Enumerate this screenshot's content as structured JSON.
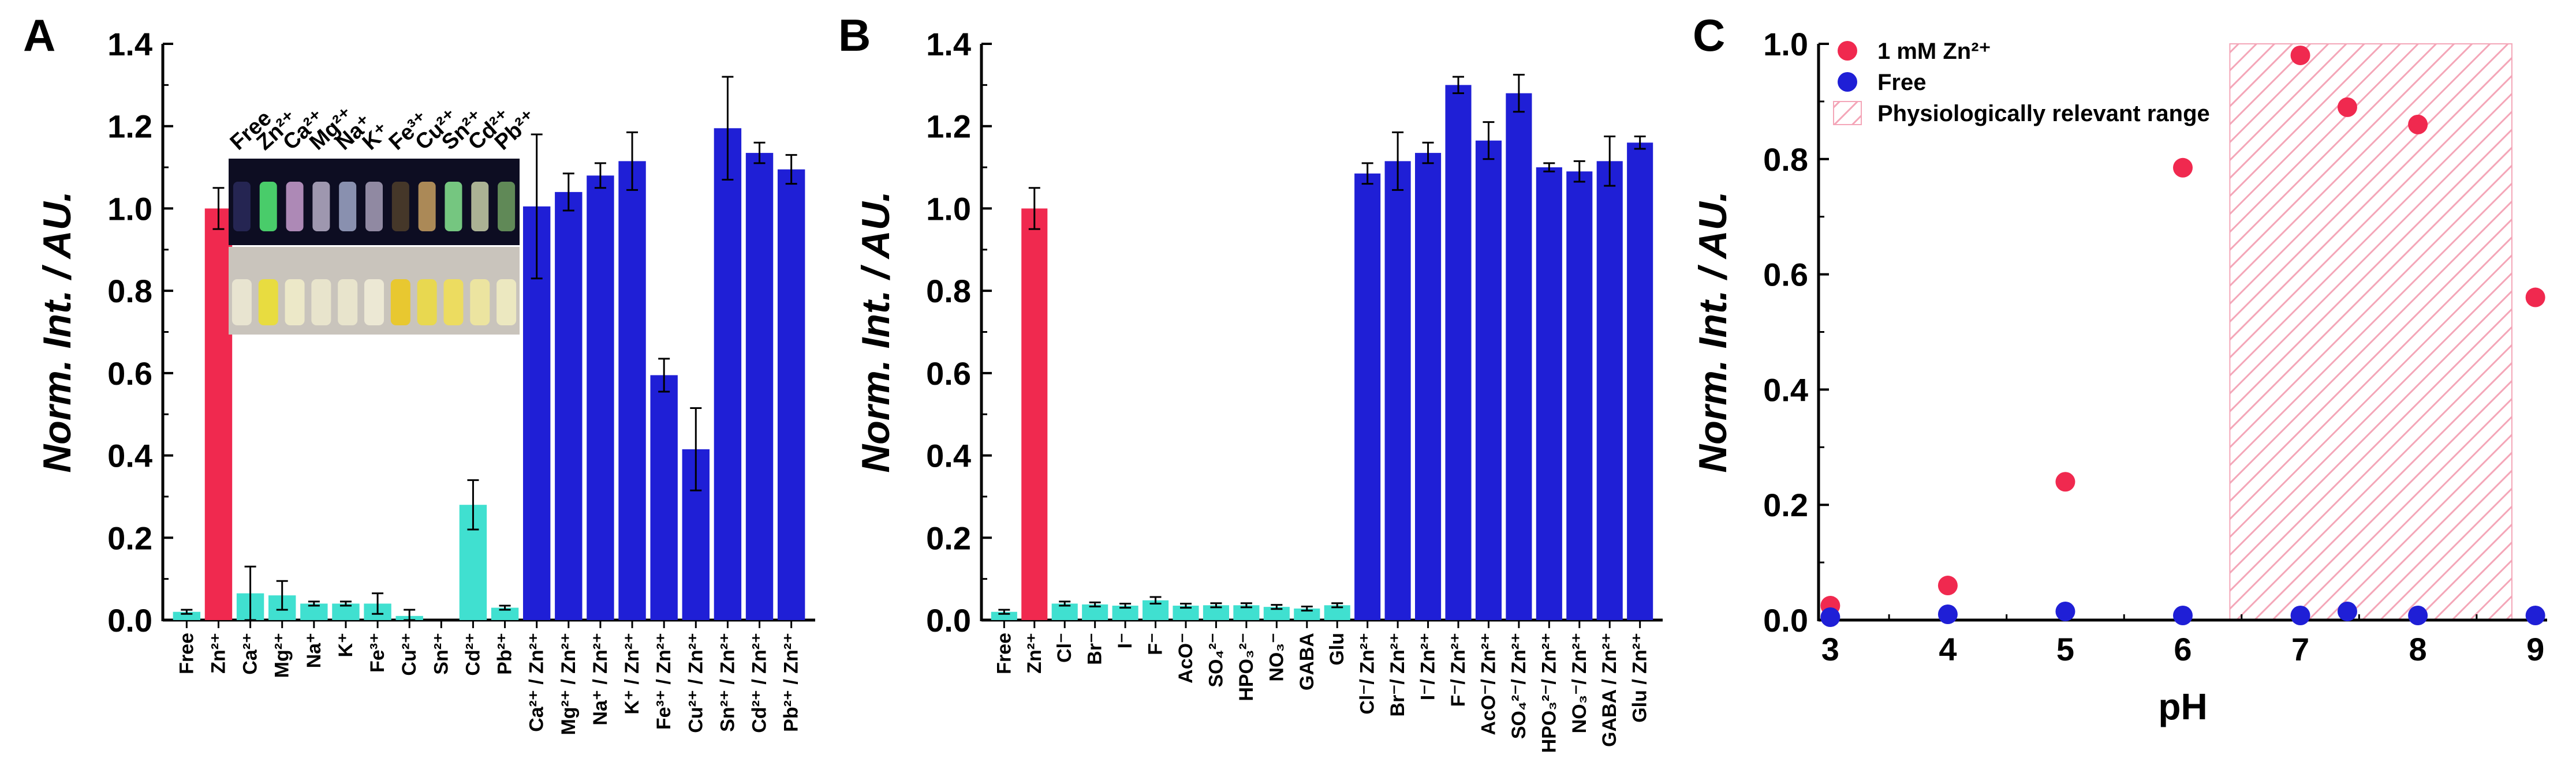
{
  "colors": {
    "zn": "#f0294f",
    "pale": "#40e0d0",
    "dark": "#1f1fd6",
    "hatch": "#f4a6b8"
  },
  "chart_data": [
    {
      "panel": "A",
      "type": "bar",
      "ylabel": "Norm. Int. / AU.",
      "ylim": [
        0,
        1.4
      ],
      "yticks": [
        "0.0",
        "0.2",
        "0.4",
        "0.6",
        "0.8",
        "1.0",
        "1.2",
        "1.4"
      ],
      "categories": [
        "Free",
        "Zn²⁺",
        "Ca²⁺",
        "Mg²⁺",
        "Na⁺",
        "K⁺",
        "Fe³⁺",
        "Cu²⁺",
        "Sn²⁺",
        "Cd²⁺",
        "Pb²⁺",
        "Ca²⁺ / Zn²⁺",
        "Mg²⁺ / Zn²⁺",
        "Na⁺ / Zn²⁺",
        "K⁺ / Zn²⁺",
        "Fe³⁺ / Zn²⁺",
        "Cu²⁺ / Zn²⁺",
        "Sn²⁺ / Zn²⁺",
        "Cd²⁺ / Zn²⁺",
        "Pb²⁺ / Zn²⁺"
      ],
      "values": [
        0.02,
        1.0,
        0.065,
        0.06,
        0.04,
        0.04,
        0.04,
        0.01,
        0.0,
        0.28,
        0.03,
        1.005,
        1.04,
        1.08,
        1.115,
        0.595,
        0.415,
        1.195,
        1.135,
        1.095
      ],
      "errors": [
        0.005,
        0.05,
        0.065,
        0.035,
        0.005,
        0.005,
        0.025,
        0.015,
        0.0,
        0.06,
        0.005,
        0.175,
        0.045,
        0.03,
        0.07,
        0.04,
        0.1,
        0.125,
        0.025,
        0.035
      ],
      "colors": [
        "pale",
        "zn",
        "pale",
        "pale",
        "pale",
        "pale",
        "pale",
        "pale",
        "pale",
        "pale",
        "pale",
        "dark",
        "dark",
        "dark",
        "dark",
        "dark",
        "dark",
        "dark",
        "dark",
        "dark"
      ],
      "inset_labels": [
        "Free",
        "Zn²⁺",
        "Ca²⁺",
        "Mg²⁺",
        "Na⁺",
        "K⁺",
        "Fe³⁺",
        "Cu²⁺",
        "Sn²⁺",
        "Cd²⁺",
        "Pb²⁺"
      ]
    },
    {
      "panel": "B",
      "type": "bar",
      "ylabel": "Norm. Int. / AU.",
      "ylim": [
        0,
        1.4
      ],
      "yticks": [
        "0.0",
        "0.2",
        "0.4",
        "0.6",
        "0.8",
        "1.0",
        "1.2",
        "1.4"
      ],
      "categories": [
        "Free",
        "Zn²⁺",
        "Cl⁻",
        "Br⁻",
        "I⁻",
        "F⁻",
        "AcO⁻",
        "SO₄²⁻",
        "HPO₃²⁻",
        "NO₃⁻",
        "GABA",
        "Glu",
        "Cl⁻/ Zn²⁺",
        "Br⁻/ Zn²⁺",
        "I⁻/ Zn²⁺",
        "F⁻/ Zn²⁺",
        "AcO⁻/ Zn²⁺",
        "SO₄²⁻/ Zn²⁺",
        "HPO₃²⁻/ Zn²⁺",
        "NO₃⁻/ Zn²⁺",
        "GABA / Zn²⁺",
        "Glu / Zn²⁺"
      ],
      "values": [
        0.02,
        1.0,
        0.04,
        0.038,
        0.035,
        0.048,
        0.035,
        0.036,
        0.036,
        0.032,
        0.028,
        0.036,
        1.085,
        1.115,
        1.135,
        1.3,
        1.165,
        1.28,
        1.1,
        1.09,
        1.115,
        1.16
      ],
      "errors": [
        0.005,
        0.05,
        0.005,
        0.005,
        0.005,
        0.008,
        0.005,
        0.005,
        0.005,
        0.005,
        0.005,
        0.005,
        0.025,
        0.07,
        0.025,
        0.02,
        0.045,
        0.045,
        0.01,
        0.025,
        0.06,
        0.015
      ],
      "colors": [
        "pale",
        "zn",
        "pale",
        "pale",
        "pale",
        "pale",
        "pale",
        "pale",
        "pale",
        "pale",
        "pale",
        "pale",
        "dark",
        "dark",
        "dark",
        "dark",
        "dark",
        "dark",
        "dark",
        "dark",
        "dark",
        "dark"
      ]
    },
    {
      "panel": "C",
      "type": "scatter",
      "xlabel": "pH",
      "ylabel": "Norm. Int. / AU.",
      "xlim": [
        2.9,
        9.1
      ],
      "ylim": [
        0,
        1.0
      ],
      "xticks": [
        "3",
        "4",
        "5",
        "6",
        "7",
        "8",
        "9"
      ],
      "yticks": [
        "0.0",
        "0.2",
        "0.4",
        "0.6",
        "0.8",
        "1.0"
      ],
      "legend_position": "top-left",
      "series": [
        {
          "name": "1 mM Zn²⁺",
          "color": "zn",
          "x": [
            3,
            4,
            5,
            6,
            7,
            7.4,
            8,
            9
          ],
          "y": [
            0.025,
            0.06,
            0.24,
            0.785,
            0.98,
            0.89,
            0.86,
            0.56
          ]
        },
        {
          "name": "Free",
          "color": "dark",
          "x": [
            3,
            4,
            5,
            6,
            7,
            7.4,
            8,
            9
          ],
          "y": [
            0.005,
            0.01,
            0.015,
            0.008,
            0.008,
            0.015,
            0.008,
            0.008
          ]
        }
      ],
      "shaded_range": {
        "name": "Physiologically relevant range",
        "x": [
          6.4,
          8.8
        ]
      }
    }
  ]
}
